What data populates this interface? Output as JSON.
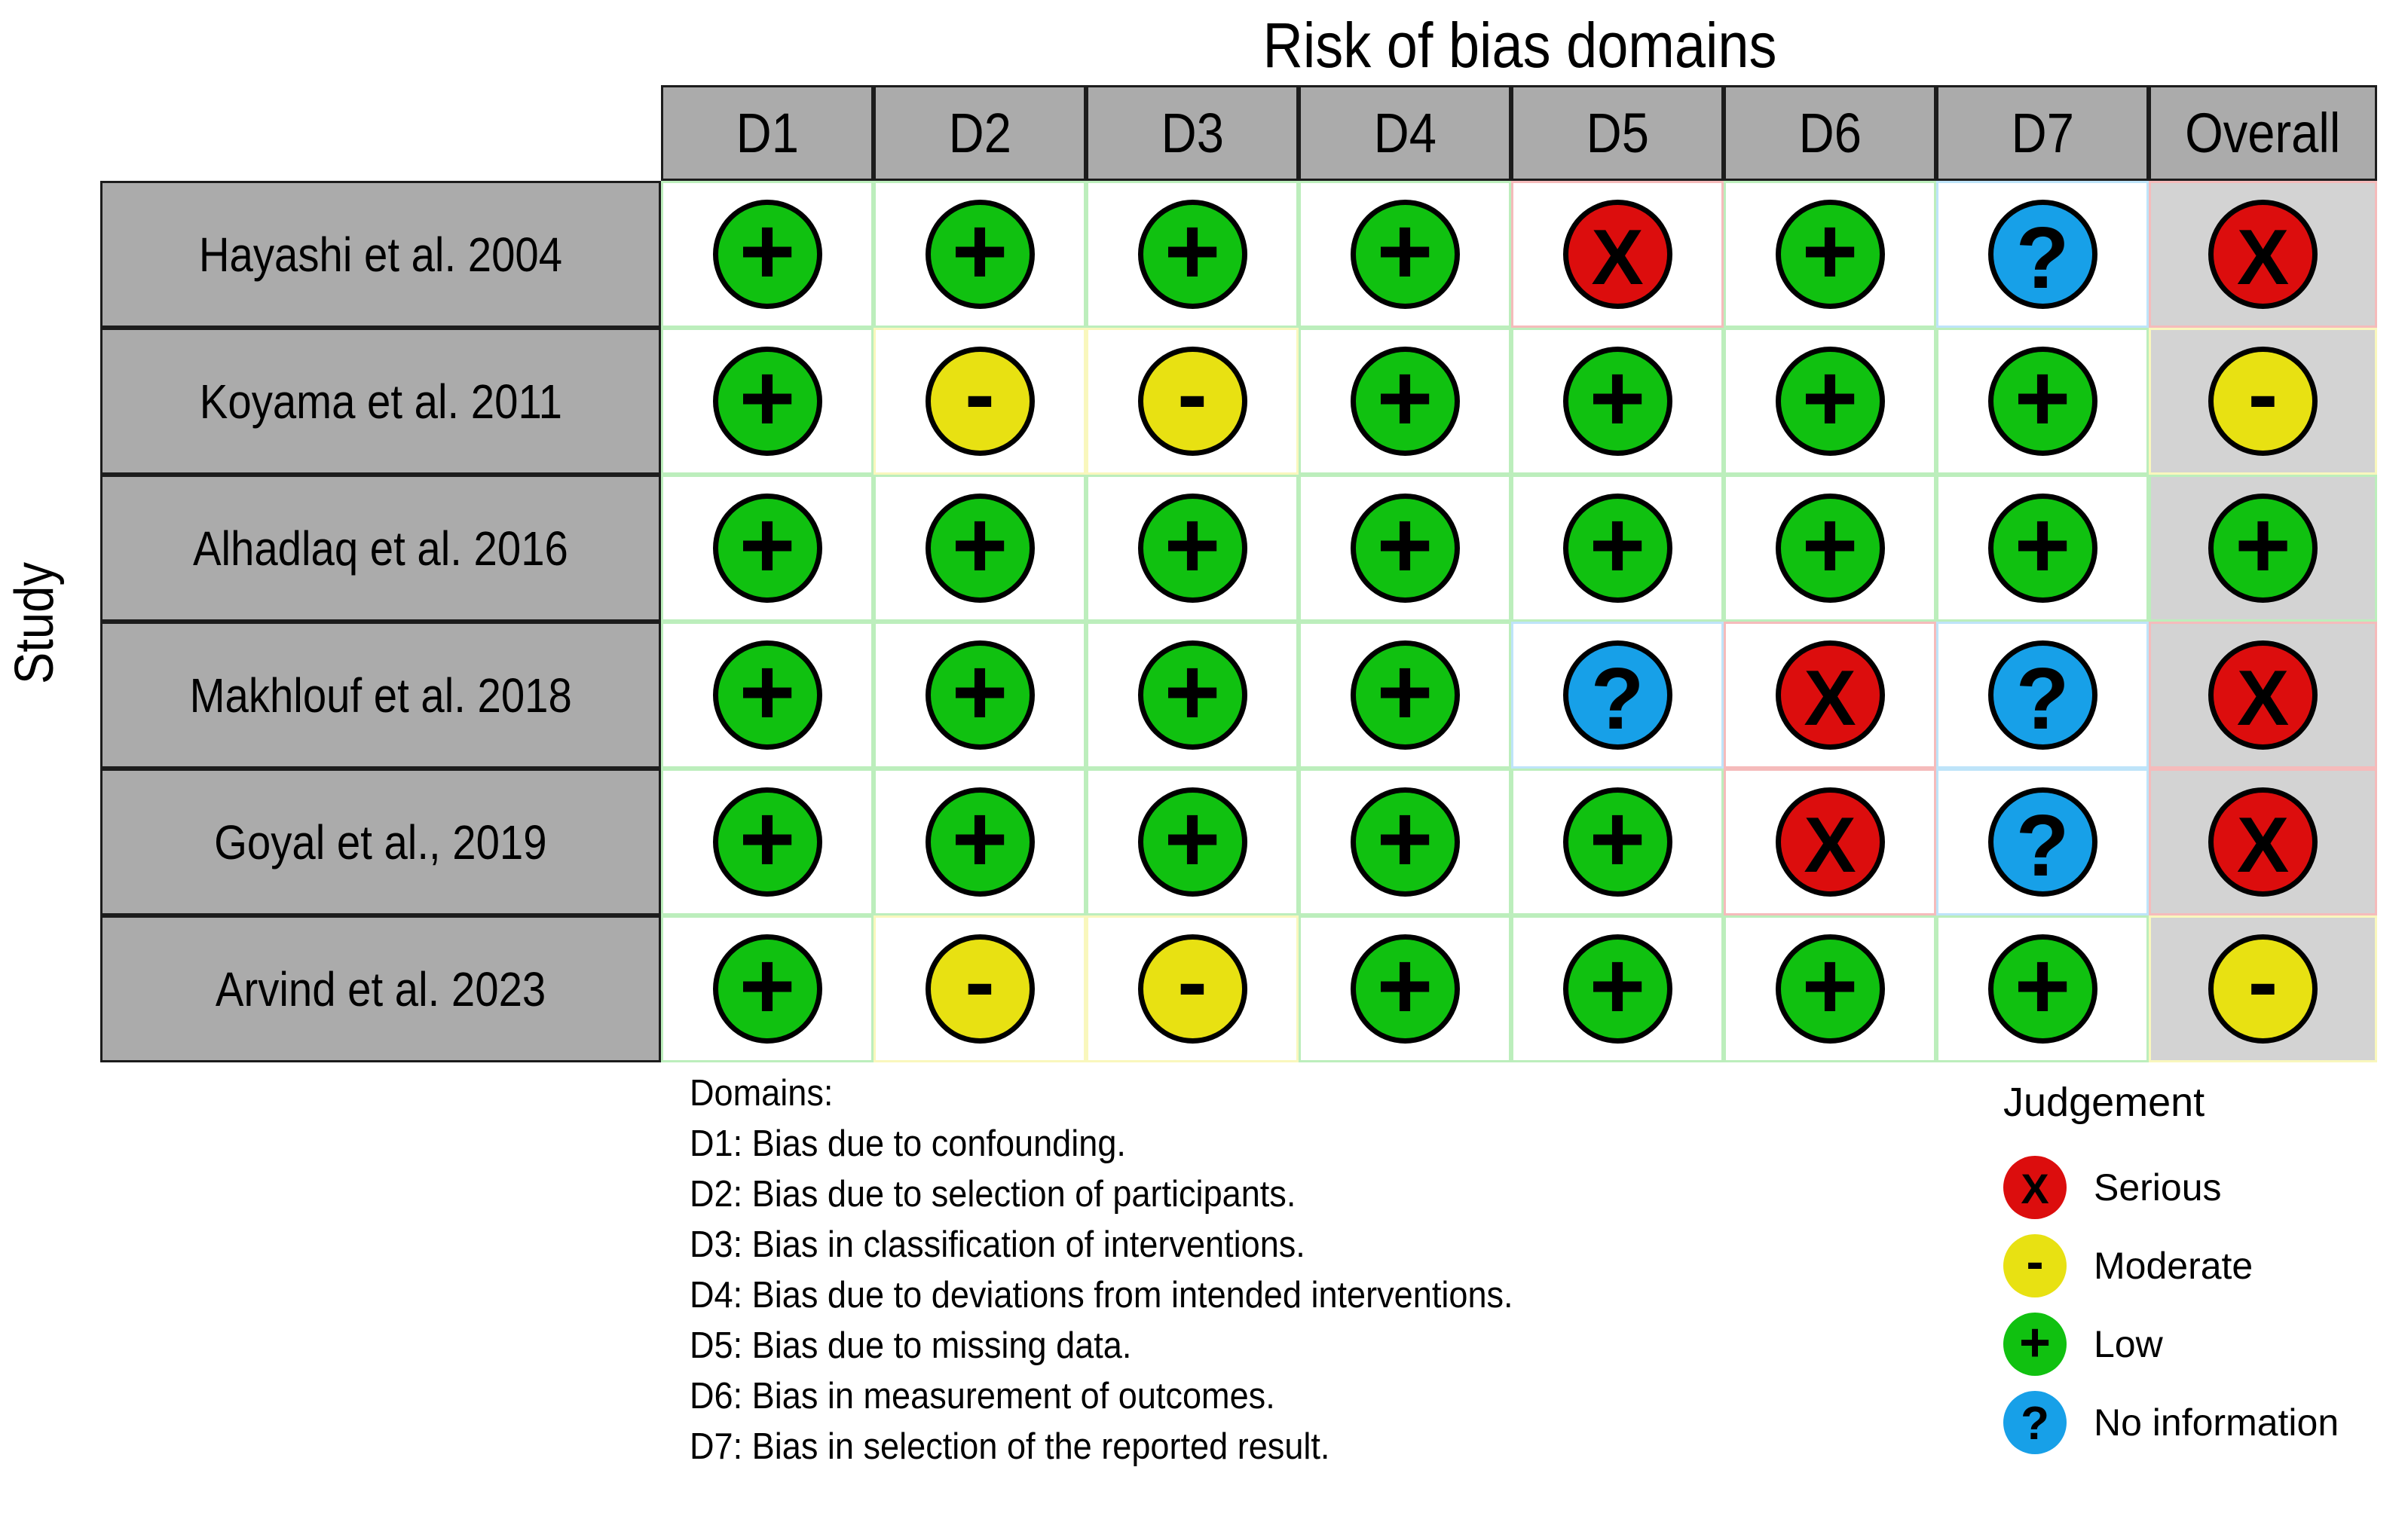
{
  "chart_data": {
    "type": "table",
    "title": "Risk of bias domains",
    "row_axis_label": "Study",
    "columns": [
      "D1",
      "D2",
      "D3",
      "D4",
      "D5",
      "D6",
      "D7",
      "Overall"
    ],
    "rows": [
      {
        "study": "Hayashi et al. 2004",
        "judgements": [
          "low",
          "low",
          "low",
          "low",
          "serious",
          "low",
          "no_info",
          "serious"
        ]
      },
      {
        "study": "Koyama et al. 2011",
        "judgements": [
          "low",
          "moderate",
          "moderate",
          "low",
          "low",
          "low",
          "low",
          "moderate"
        ]
      },
      {
        "study": "Alhadlaq et al. 2016",
        "judgements": [
          "low",
          "low",
          "low",
          "low",
          "low",
          "low",
          "low",
          "low"
        ]
      },
      {
        "study": "Makhlouf et al. 2018",
        "judgements": [
          "low",
          "low",
          "low",
          "low",
          "no_info",
          "serious",
          "no_info",
          "serious"
        ]
      },
      {
        "study": "Goyal et al., 2019",
        "judgements": [
          "low",
          "low",
          "low",
          "low",
          "low",
          "serious",
          "no_info",
          "serious"
        ]
      },
      {
        "study": "Arvind et al. 2023",
        "judgements": [
          "low",
          "moderate",
          "moderate",
          "low",
          "low",
          "low",
          "low",
          "moderate"
        ]
      }
    ],
    "judgements": {
      "serious": {
        "symbol": "X",
        "label": "Serious",
        "color": "#DC0D0D"
      },
      "moderate": {
        "symbol": "-",
        "label": "Moderate",
        "color": "#E8E112"
      },
      "low": {
        "symbol": "+",
        "label": "Low",
        "color": "#10C110"
      },
      "no_info": {
        "symbol": "?",
        "label": "No information",
        "color": "#17A0E8"
      }
    },
    "legend": {
      "title": "Judgement",
      "order": [
        "serious",
        "moderate",
        "low",
        "no_info"
      ]
    },
    "footnote": {
      "heading": "Domains:",
      "lines": [
        "D1: Bias due to confounding.",
        "D2: Bias due to selection of participants.",
        "D3: Bias in classification of interventions.",
        "D4: Bias due to deviations from intended interventions.",
        "D5: Bias due to missing data.",
        "D6: Bias in measurement of outcomes.",
        "D7: Bias in selection of the reported result."
      ]
    }
  },
  "colors": {
    "header_bg": "#ABABAB",
    "study_bg": "#ABABAB",
    "overall_bg": "#D3D3D3",
    "cell_bg": "#FFFFFF",
    "grid_black": "#1C1C1C",
    "circle_outline": "#000000",
    "page_bg": "#FFFFFF"
  }
}
